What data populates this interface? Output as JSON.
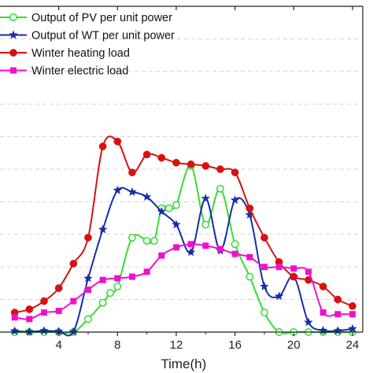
{
  "chart_data": {
    "type": "line",
    "xlabel": "Time(h)",
    "ylabel": "",
    "title": "",
    "xlim": [
      0,
      24.7
    ],
    "ylim": [
      0,
      1.0
    ],
    "xticks": [
      4,
      8,
      12,
      16,
      20,
      24
    ],
    "yticks_unlabeled": [
      0.1,
      0.2,
      0.3,
      0.4,
      0.5,
      0.6,
      0.7,
      0.8,
      0.9
    ],
    "grid": "horizontal dashed",
    "legend_position": "top-left",
    "series": [
      {
        "name": "Output of PV per unit power",
        "color": "#33dd33",
        "marker": "circle-open",
        "x": [
          1,
          2,
          3,
          4,
          5,
          6,
          7,
          7.5,
          8,
          9,
          10,
          10.5,
          11,
          11.5,
          12,
          13,
          14,
          15,
          16,
          17,
          18,
          19,
          20,
          21,
          22,
          23,
          24
        ],
        "y": [
          0,
          0,
          0,
          0,
          0,
          0.04,
          0.09,
          0.12,
          0.14,
          0.29,
          0.28,
          0.28,
          0.38,
          0.38,
          0.39,
          0.51,
          0.33,
          0.44,
          0.27,
          0.17,
          0.06,
          0,
          0,
          0,
          0,
          0,
          0
        ]
      },
      {
        "name": "Output of WT per unit power",
        "color": "#1a2ca8",
        "marker": "star",
        "x": [
          1,
          2,
          3,
          4,
          5,
          6,
          7,
          8,
          9,
          10,
          11,
          12,
          13,
          14,
          15,
          16,
          17,
          18,
          19,
          20,
          21,
          22,
          23,
          24
        ],
        "y": [
          0.003,
          0.001,
          0.004,
          0.002,
          0.001,
          0.165,
          0.315,
          0.435,
          0.43,
          0.415,
          0.37,
          0.33,
          0.245,
          0.41,
          0.25,
          0.405,
          0.36,
          0.14,
          0.11,
          0.17,
          0.03,
          0.005,
          0.004,
          0.01
        ]
      },
      {
        "name": "Winter heating load",
        "color": "#d81111",
        "marker": "circle-filled",
        "x": [
          1,
          2,
          3,
          4,
          5,
          6,
          7,
          8,
          9,
          10,
          11,
          12,
          13,
          14,
          15,
          16,
          17,
          18,
          19,
          20,
          21,
          22,
          23,
          24
        ],
        "y": [
          0.06,
          0.07,
          0.095,
          0.135,
          0.21,
          0.29,
          0.57,
          0.585,
          0.49,
          0.545,
          0.535,
          0.52,
          0.515,
          0.51,
          0.5,
          0.49,
          0.38,
          0.29,
          0.215,
          0.17,
          0.16,
          0.14,
          0.1,
          0.08
        ]
      },
      {
        "name": "Winter electric load",
        "color": "#ee11cc",
        "marker": "square",
        "x": [
          1,
          2,
          3,
          4,
          5,
          6,
          7,
          8,
          9,
          10,
          11,
          12,
          13,
          14,
          15,
          16,
          17,
          18,
          19,
          20,
          21,
          22,
          23,
          24
        ],
        "y": [
          0.045,
          0.04,
          0.06,
          0.065,
          0.095,
          0.13,
          0.16,
          0.165,
          0.17,
          0.185,
          0.235,
          0.26,
          0.27,
          0.265,
          0.255,
          0.24,
          0.23,
          0.2,
          0.2,
          0.195,
          0.185,
          0.06,
          0.055,
          0.055
        ]
      }
    ]
  }
}
